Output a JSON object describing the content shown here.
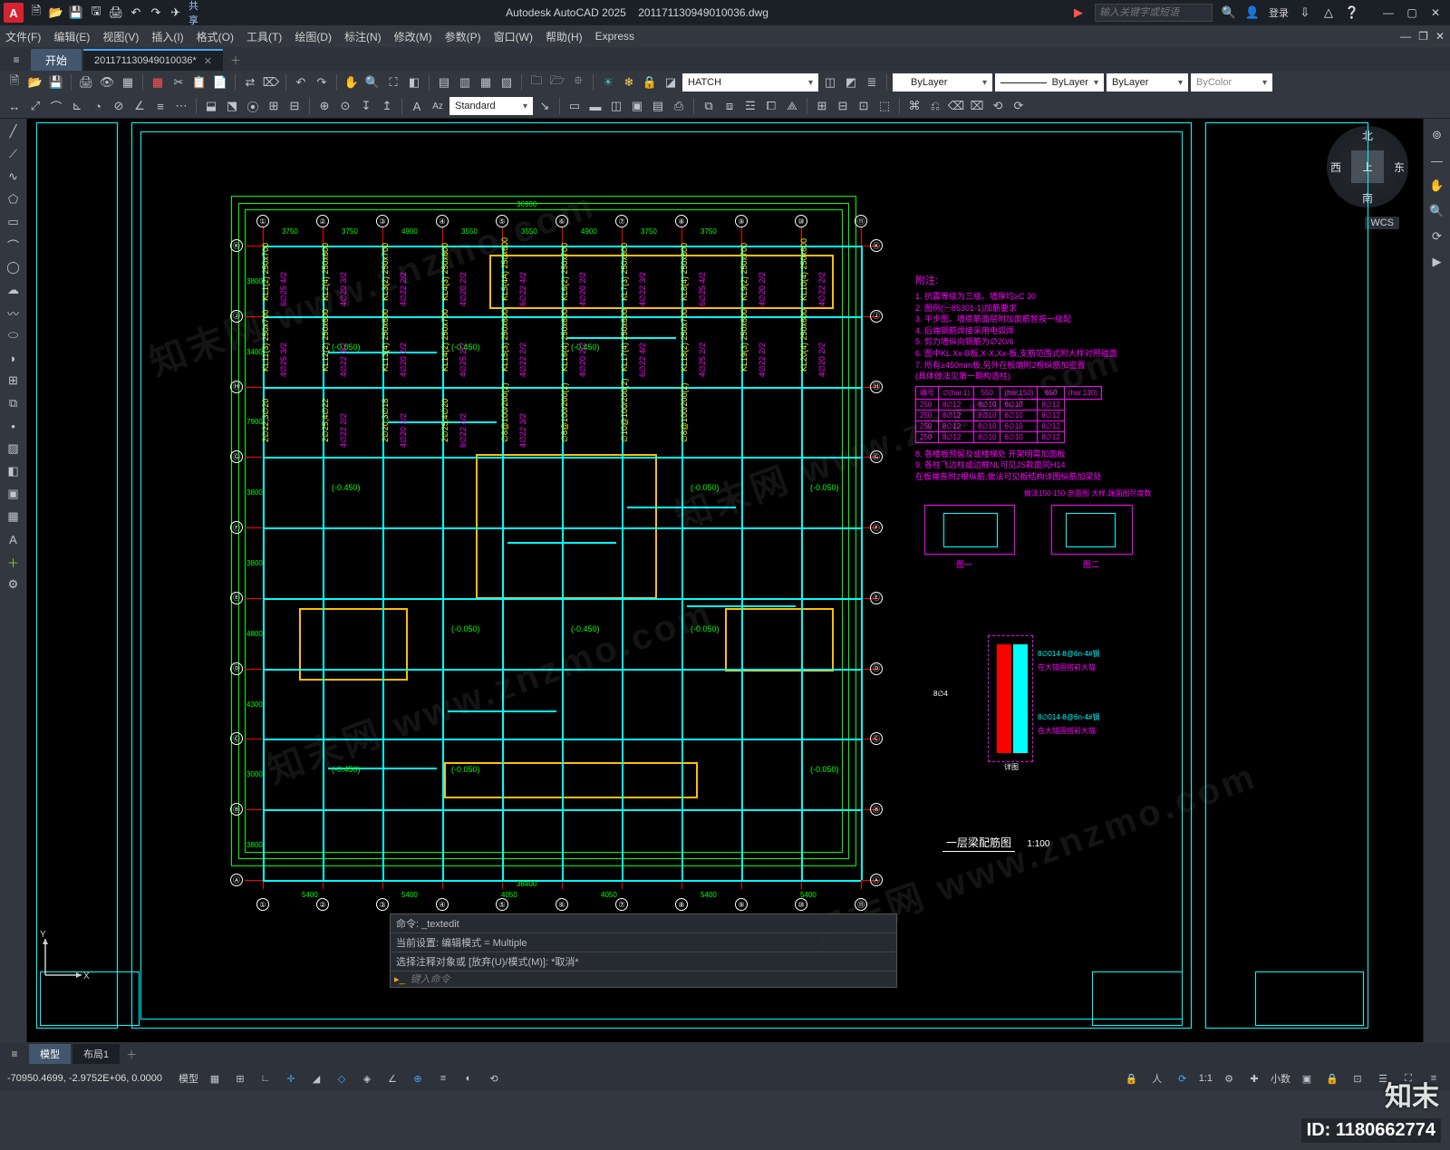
{
  "app": {
    "title_app": "Autodesk AutoCAD 2025",
    "title_doc": "201171130949010036.dwg",
    "search_placeholder": "输入关键字或短语",
    "login": "登录",
    "share": "共享"
  },
  "menus": [
    "文件(F)",
    "编辑(E)",
    "视图(V)",
    "插入(I)",
    "格式(O)",
    "工具(T)",
    "绘图(D)",
    "标注(N)",
    "修改(M)",
    "参数(P)",
    "窗口(W)",
    "帮助(H)",
    "Express"
  ],
  "start_tab": "开始",
  "doc_tab": "201171130949010036*",
  "ribbon": {
    "hatch_combo": "HATCH",
    "layer_combo": "ByLayer",
    "linetype_combo": "ByLayer",
    "lineweight_combo": "ByLayer",
    "color_combo": "ByColor",
    "textstyle": "Standard"
  },
  "viewcube": {
    "n": "北",
    "s": "南",
    "e": "东",
    "w": "西",
    "top": "上",
    "wcs": "WCS"
  },
  "colors": {
    "axis": "#ff0000",
    "beam": "#00ffff",
    "wall": "#ffbf00",
    "dim": "#00ff00",
    "text_y": "#ffff00",
    "text_m": "#ff00ff",
    "white": "#ffffff",
    "bg": "#000000"
  },
  "plan": {
    "h_axes_labels": [
      "①",
      "②",
      "③",
      "④",
      "⑤",
      "⑥",
      "⑦",
      "⑧",
      "⑨",
      "⑩",
      "⑪"
    ],
    "v_axes_labels": [
      "Ⓚ",
      "Ⓙ",
      "Ⓗ",
      "Ⓖ",
      "Ⓕ",
      "Ⓔ",
      "Ⓓ",
      "Ⓒ",
      "Ⓑ",
      "Ⓐ"
    ],
    "top_dims": [
      "3750",
      "3750",
      "4900",
      "3550",
      "3550",
      "4900",
      "3750",
      "3750"
    ],
    "span_top": "36900",
    "left_dims": [
      "3800",
      "3400",
      "7900",
      "3800",
      "3800",
      "4800",
      "4300",
      "3000",
      "3800"
    ],
    "bottom_dims": [
      "5400",
      "5400",
      "4050",
      "4050",
      "5400",
      "5400"
    ],
    "span_bottom": "38400"
  },
  "notes": {
    "title": "附注:",
    "lines": [
      "1. 抗震等级为三级。墙厚均≥C 30",
      "2. 图例(㊀85301-1)加筋要求",
      "3. 平步图。墙底筋面层附加面筋暂按一级配",
      "4. 后端钢筋焊接采用电弧焊",
      "5. 剪力墙纵向钢筋为∅20/6",
      "6. 图中KL Xx-B板,X-X,Xx-板,支筋范围式附大样对照碰面",
      "7. 所有≥450mm板,另外在板端附2根纵筋加密置",
      "(具体做法见第一期构造柱)"
    ],
    "post_lines": [
      "8. 各楼板预留及或楼梯处 开架明需加面板",
      "9. 各柱飞边柱或边框NL可见JS款面同H14",
      "  在板端各附2根纵筋,做法可见板结构详图纵筋加梁处"
    ],
    "table": {
      "headers": [
        "编号",
        "∅(har.1)",
        "550",
        "(har.150)",
        "650",
        "(har.130)"
      ],
      "rows": [
        [
          "250",
          "8∅12",
          "8∅10",
          "6∅10",
          "8∅12"
        ],
        [
          "250",
          "8∅12",
          "8∅10",
          "6∅10",
          "8∅12"
        ],
        [
          "250",
          "8∅12",
          "8∅10",
          "6∅10",
          "8∅12"
        ],
        [
          "250",
          "8∅12",
          "8∅10",
          "6∅10",
          "8∅12"
        ]
      ]
    },
    "detail_caption": "做法150-150-剖面图\n大样,端面图尽度数",
    "detail_labels": [
      "图一",
      "图二"
    ]
  },
  "section": {
    "label_top": "8∅4",
    "texts": [
      "8∅014-8@6n-4#钢",
      "在大锚固搭前大锚",
      "8∅014-8@6n-4#钢",
      "在大锚固搭前大锚"
    ],
    "caption": "详图"
  },
  "title_block": {
    "name": "一层梁配筋图",
    "scale": "1:100"
  },
  "annotations_yellow": [
    "KL1(2) 250x700",
    "KL2(4) 250x600",
    "KL3(2) 250x700",
    "KL4(3) 250x600",
    "KL5(4A) 250x600",
    "KL6(2) 250x700",
    "KL7(3) 250x600",
    "KL8(4) 250x600",
    "KL9(2) 250x700",
    "KL10(4) 250x600",
    "KL11(3) 250x700",
    "KL12(2) 250x600",
    "KL13(4) 250x600",
    "KL14(2) 250x700",
    "KL15(3) 250x600",
    "KL16(4) 250x600",
    "KL17(4) 250x600",
    "KL18(2) 250x700",
    "KL19(3) 250x600",
    "KL20(4) 250x600",
    "2∅22;3∅20",
    "2∅25;4∅22",
    "2∅20;3∅18",
    "2∅25;4∅20",
    "∅8@100/200(2)",
    "∅8@100/200(2)",
    "∅10@100/200(2)",
    "∅8@100/200(2)"
  ],
  "annotations_magenta": [
    "4∅20 3/2",
    "4∅22 2/2",
    "4∅20 2/2",
    "6∅22 4/2",
    "4∅20 2/2",
    "4∅22 3/2",
    "6∅25 4/2",
    "4∅20 2/2",
    "4∅22 2/2",
    "6∅25 4/2",
    "4∅22 3/2",
    "4∅20 2/2",
    "4∅25 2/2",
    "4∅22 2/2",
    "4∅20 2/2",
    "6∅22 4/2",
    "4∅25 2/2",
    "4∅22 2/2",
    "4∅20 2/2",
    "4∅25 3/2",
    "4∅22 2/2",
    "4∅20 2/2",
    "6∅22 4/2",
    "4∅22 3/2"
  ],
  "annotations_green": [
    "(-0.050)",
    "(-0.450)",
    "(-0.450)",
    "(-0.050)",
    "(-0.050)",
    "(-0.450)",
    "(-0.050)",
    "(-0.450)",
    "(-0.050)",
    "(-0.050)",
    "(-0.450)",
    "(-0.050)"
  ],
  "command": {
    "hist1": "命令: _textedit",
    "hist2": "当前设置: 编辑模式 = Multiple",
    "hist3": "选择注释对象或 [放弃(U)/模式(M)]: *取消*",
    "prompt_placeholder": "键入命令"
  },
  "layout_tabs": {
    "model": "模型",
    "layout1": "布局1"
  },
  "status": {
    "coords": "-70950.4699, -2.9752E+06, 0.0000",
    "label_model": "模型",
    "label_decimal": "小数",
    "zoom": "1:1"
  },
  "overlay": {
    "id": "ID: 1180662774",
    "brand": "知末",
    "wm": "知末网 www.znzmo.com"
  }
}
